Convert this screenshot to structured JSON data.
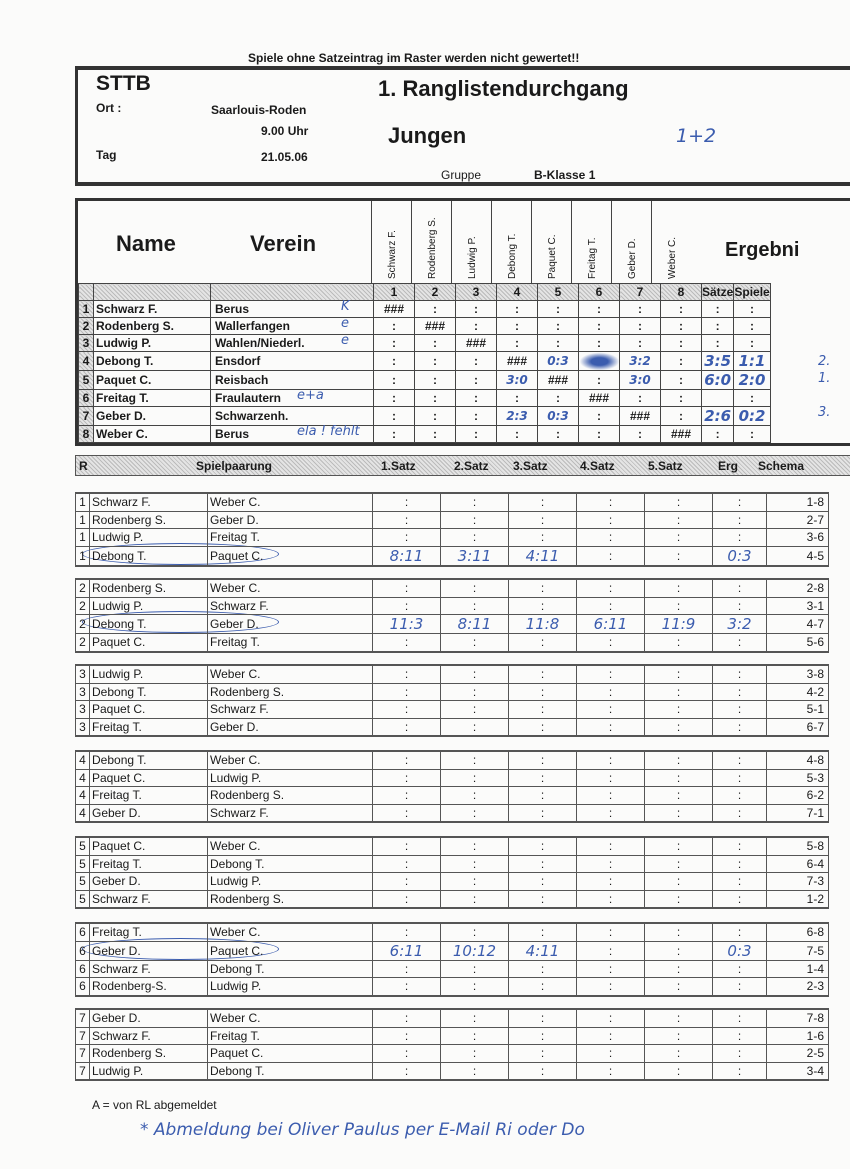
{
  "top_note": "Spiele ohne Satzeintrag im Raster werden nicht gewertet!!",
  "header": {
    "org": "STTB",
    "title": "1. Ranglistendurchgang",
    "ort_label": "Ort :",
    "ort": "Saarlouis-Roden",
    "time": "9.00 Uhr",
    "tag_label": "Tag",
    "date": "21.05.06",
    "category": "Jungen",
    "handwritten_note": "1+2",
    "gruppe_label": "Gruppe",
    "gruppe": "B-Klasse 1"
  },
  "ranking": {
    "name_header": "Name",
    "verein_header": "Verein",
    "result_header": "Ergebni",
    "saetze_header": "Sätze",
    "spiele_header": "Spiele",
    "column_players": [
      "Schwarz F.",
      "Rodenberg S.",
      "Ludwig P.",
      "Debong T.",
      "Paquet C.",
      "Freitag T.",
      "Geber D.",
      "Weber C."
    ],
    "column_numbers": [
      "1",
      "2",
      "3",
      "4",
      "5",
      "6",
      "7",
      "8"
    ],
    "rows": [
      {
        "nr": "1",
        "name": "Schwarz F.",
        "verein": "Berus",
        "note": "K",
        "cells": [
          "###",
          ":",
          ":",
          ":",
          ":",
          ":",
          ":",
          ":"
        ],
        "saetze": ":",
        "spiele": ":",
        "place": ""
      },
      {
        "nr": "2",
        "name": "Rodenberg S.",
        "verein": "Wallerfangen",
        "note": "e",
        "cells": [
          ":",
          "###",
          ":",
          ":",
          ":",
          ":",
          ":",
          ":"
        ],
        "saetze": ":",
        "spiele": ":",
        "place": ""
      },
      {
        "nr": "3",
        "name": "Ludwig P.",
        "verein": "Wahlen/Niederl.",
        "note": "e",
        "cells": [
          ":",
          ":",
          "###",
          ":",
          ":",
          ":",
          ":",
          ":"
        ],
        "saetze": ":",
        "spiele": ":",
        "place": ""
      },
      {
        "nr": "4",
        "name": "Debong T.",
        "verein": "Ensdorf",
        "note": "",
        "cells": [
          ":",
          ":",
          ":",
          "###",
          "0:3",
          "",
          "3:2",
          ":"
        ],
        "saetze": "3:5",
        "spiele": "1:1",
        "place": "2."
      },
      {
        "nr": "5",
        "name": "Paquet C.",
        "verein": "Reisbach",
        "note": "",
        "cells": [
          ":",
          ":",
          ":",
          "3:0",
          "###",
          ":",
          "3:0",
          ":"
        ],
        "saetze": "6:0",
        "spiele": "2:0",
        "place": "1."
      },
      {
        "nr": "6",
        "name": "Freitag T.",
        "verein": "Fraulautern",
        "note": "e+a",
        "cells": [
          ":",
          ":",
          ":",
          ":",
          ":",
          "###",
          ":",
          ":"
        ],
        "saetze": "",
        "spiele": ":",
        "place": ""
      },
      {
        "nr": "7",
        "name": "Geber D.",
        "verein": "Schwarzenh.",
        "note": "",
        "cells": [
          ":",
          ":",
          ":",
          "2:3",
          "0:3",
          ":",
          "###",
          ":"
        ],
        "saetze": "2:6",
        "spiele": "0:2",
        "place": "3."
      },
      {
        "nr": "8",
        "name": "Weber C.",
        "verein": "Berus",
        "note": "ela ! fehlt",
        "cells": [
          ":",
          ":",
          ":",
          ":",
          ":",
          ":",
          ":",
          "###"
        ],
        "saetze": ":",
        "spiele": ":",
        "place": ""
      }
    ]
  },
  "schedule": {
    "headers": {
      "r": "R",
      "pairing": "Spielpaarung",
      "s1": "1.Satz",
      "s2": "2.Satz",
      "s3": "3.Satz",
      "s4": "4.Satz",
      "s5": "5.Satz",
      "erg": "Erg",
      "schema": "Schema"
    },
    "rounds": [
      {
        "games": [
          {
            "r": "1",
            "p1": "Schwarz F.",
            "p2": "Weber C.",
            "sets": [
              ":",
              ":",
              ":",
              ":",
              ":"
            ],
            "erg": ":",
            "schema": "1-8"
          },
          {
            "r": "1",
            "p1": "Rodenberg S.",
            "p2": "Geber D.",
            "sets": [
              ":",
              ":",
              ":",
              ":",
              ":"
            ],
            "erg": ":",
            "schema": "2-7"
          },
          {
            "r": "1",
            "p1": "Ludwig P.",
            "p2": "Freitag T.",
            "sets": [
              ":",
              ":",
              ":",
              ":",
              ":"
            ],
            "erg": ":",
            "schema": "3-6"
          },
          {
            "r": "1",
            "p1": "Debong T.",
            "p2": "Paquet C.",
            "sets": [
              "8:11",
              "3:11",
              "4:11",
              ":",
              ":"
            ],
            "erg": "0:3",
            "schema": "4-5",
            "circled": true
          }
        ]
      },
      {
        "games": [
          {
            "r": "2",
            "p1": "Rodenberg S.",
            "p2": "Weber C.",
            "sets": [
              ":",
              ":",
              ":",
              ":",
              ":"
            ],
            "erg": ":",
            "schema": "2-8"
          },
          {
            "r": "2",
            "p1": "Ludwig P.",
            "p2": "Schwarz F.",
            "sets": [
              ":",
              ":",
              ":",
              ":",
              ":"
            ],
            "erg": ":",
            "schema": "3-1"
          },
          {
            "r": "2",
            "p1": "Debong T.",
            "p2": "Geber D.",
            "sets": [
              "11:3",
              "8:11",
              "11:8",
              "6:11",
              "11:9"
            ],
            "erg": "3:2",
            "schema": "4-7",
            "circled": true
          },
          {
            "r": "2",
            "p1": "Paquet C.",
            "p2": "Freitag T.",
            "sets": [
              ":",
              ":",
              ":",
              ":",
              ":"
            ],
            "erg": ":",
            "schema": "5-6"
          }
        ]
      },
      {
        "games": [
          {
            "r": "3",
            "p1": "Ludwig P.",
            "p2": "Weber C.",
            "sets": [
              ":",
              ":",
              ":",
              ":",
              ":"
            ],
            "erg": ":",
            "schema": "3-8"
          },
          {
            "r": "3",
            "p1": "Debong T.",
            "p2": "Rodenberg S.",
            "sets": [
              ":",
              ":",
              ":",
              ":",
              ":"
            ],
            "erg": ":",
            "schema": "4-2"
          },
          {
            "r": "3",
            "p1": "Paquet C.",
            "p2": "Schwarz F.",
            "sets": [
              ":",
              ":",
              ":",
              ":",
              ":"
            ],
            "erg": ":",
            "schema": "5-1"
          },
          {
            "r": "3",
            "p1": "Freitag T.",
            "p2": "Geber D.",
            "sets": [
              ":",
              ":",
              ":",
              ":",
              ":"
            ],
            "erg": ":",
            "schema": "6-7"
          }
        ]
      },
      {
        "games": [
          {
            "r": "4",
            "p1": "Debong T.",
            "p2": "Weber C.",
            "sets": [
              ":",
              ":",
              ":",
              ":",
              ":"
            ],
            "erg": ":",
            "schema": "4-8"
          },
          {
            "r": "4",
            "p1": "Paquet C.",
            "p2": "Ludwig P.",
            "sets": [
              ":",
              ":",
              ":",
              ":",
              ":"
            ],
            "erg": ":",
            "schema": "5-3"
          },
          {
            "r": "4",
            "p1": "Freitag T.",
            "p2": "Rodenberg S.",
            "sets": [
              ":",
              ":",
              ":",
              ":",
              ":"
            ],
            "erg": ":",
            "schema": "6-2"
          },
          {
            "r": "4",
            "p1": "Geber D.",
            "p2": "Schwarz F.",
            "sets": [
              ":",
              ":",
              ":",
              ":",
              ":"
            ],
            "erg": ":",
            "schema": "7-1"
          }
        ]
      },
      {
        "games": [
          {
            "r": "5",
            "p1": "Paquet C.",
            "p2": "Weber C.",
            "sets": [
              ":",
              ":",
              ":",
              ":",
              ":"
            ],
            "erg": ":",
            "schema": "5-8"
          },
          {
            "r": "5",
            "p1": "Freitag T.",
            "p2": "Debong T.",
            "sets": [
              ":",
              ":",
              ":",
              ":",
              ":"
            ],
            "erg": ":",
            "schema": "6-4"
          },
          {
            "r": "5",
            "p1": "Geber D.",
            "p2": "Ludwig P.",
            "sets": [
              ":",
              ":",
              ":",
              ":",
              ":"
            ],
            "erg": ":",
            "schema": "7-3"
          },
          {
            "r": "5",
            "p1": "Schwarz F.",
            "p2": "Rodenberg S.",
            "sets": [
              ":",
              ":",
              ":",
              ":",
              ":"
            ],
            "erg": ":",
            "schema": "1-2"
          }
        ]
      },
      {
        "games": [
          {
            "r": "6",
            "p1": "Freitag T.",
            "p2": "Weber C.",
            "sets": [
              ":",
              ":",
              ":",
              ":",
              ":"
            ],
            "erg": ":",
            "schema": "6-8"
          },
          {
            "r": "6",
            "p1": "Geber D.",
            "p2": "Paquet C.",
            "sets": [
              "6:11",
              "10:12",
              "4:11",
              ":",
              ":"
            ],
            "erg": "0:3",
            "schema": "7-5",
            "circled": true
          },
          {
            "r": "6",
            "p1": "Schwarz F.",
            "p2": "Debong T.",
            "sets": [
              ":",
              ":",
              ":",
              ":",
              ":"
            ],
            "erg": ":",
            "schema": "1-4"
          },
          {
            "r": "6",
            "p1": "Rodenberg-S.",
            "p2": "Ludwig P.",
            "sets": [
              ":",
              ":",
              ":",
              ":",
              ":"
            ],
            "erg": ":",
            "schema": "2-3"
          }
        ]
      },
      {
        "games": [
          {
            "r": "7",
            "p1": "Geber D.",
            "p2": "Weber C.",
            "sets": [
              ":",
              ":",
              ":",
              ":",
              ":"
            ],
            "erg": ":",
            "schema": "7-8"
          },
          {
            "r": "7",
            "p1": "Schwarz F.",
            "p2": "Freitag T.",
            "sets": [
              ":",
              ":",
              ":",
              ":",
              ":"
            ],
            "erg": ":",
            "schema": "1-6"
          },
          {
            "r": "7",
            "p1": "Rodenberg S.",
            "p2": "Paquet C.",
            "sets": [
              ":",
              ":",
              ":",
              ":",
              ":"
            ],
            "erg": ":",
            "schema": "2-5"
          },
          {
            "r": "7",
            "p1": "Ludwig P.",
            "p2": "Debong T.",
            "sets": [
              ":",
              ":",
              ":",
              ":",
              ":"
            ],
            "erg": ":",
            "schema": "3-4"
          }
        ]
      }
    ]
  },
  "footer": {
    "legend": "A = von RL abgemeldet",
    "handwritten_note": "* Abmeldung bei Oliver Paulus per E-Mail Ri oder Do"
  },
  "colors": {
    "ink": "#3b5cae",
    "print": "#1a1a1a"
  }
}
